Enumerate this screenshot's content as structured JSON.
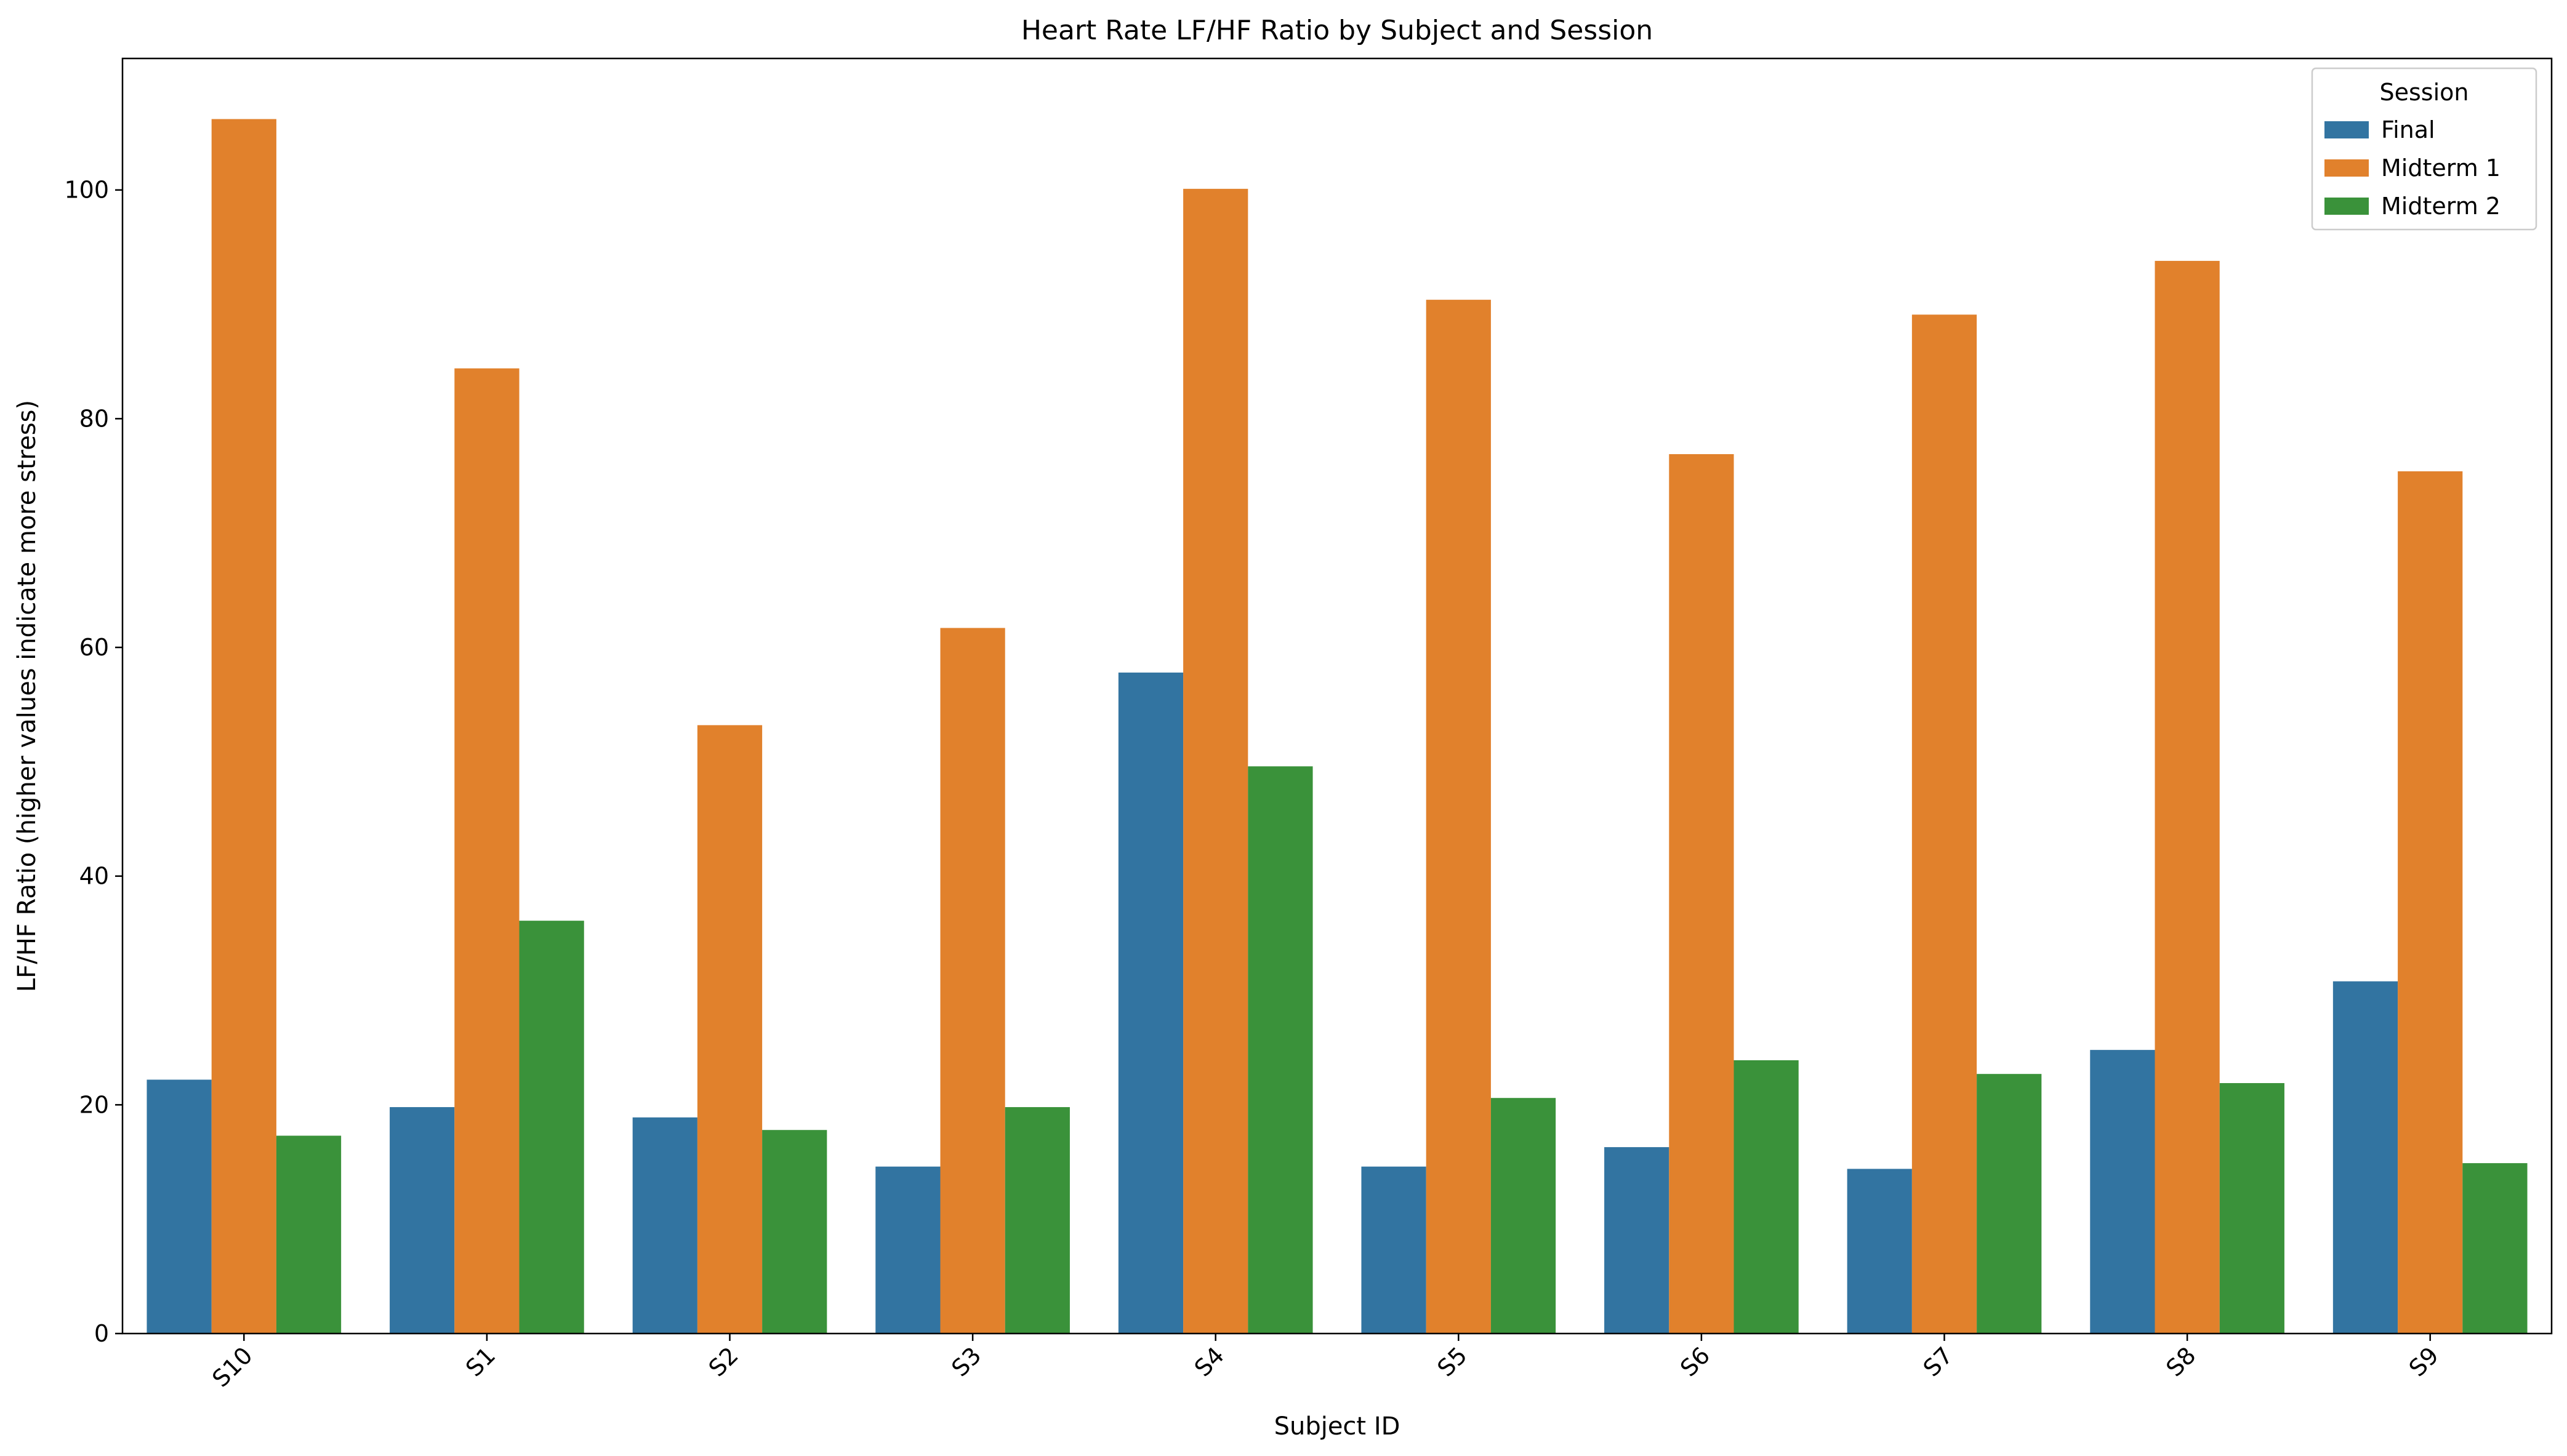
{
  "chart_data": {
    "type": "bar",
    "title": "Heart Rate LF/HF Ratio by Subject and Session",
    "xlabel": "Subject ID",
    "ylabel": "LF/HF Ratio (higher values indicate more stress)",
    "categories": [
      "S10",
      "S1",
      "S2",
      "S3",
      "S4",
      "S5",
      "S6",
      "S7",
      "S8",
      "S9"
    ],
    "ylim": [
      0,
      111.5
    ],
    "yticks": [
      0,
      20,
      40,
      60,
      80,
      100
    ],
    "grid": false,
    "legend": {
      "title": "Session",
      "placement": "top-right"
    },
    "series": [
      {
        "name": "Final",
        "color": "#3274a1",
        "values": [
          22.2,
          19.8,
          18.9,
          14.6,
          57.8,
          14.6,
          16.3,
          14.4,
          24.8,
          30.8
        ]
      },
      {
        "name": "Midterm 1",
        "color": "#e1812c",
        "values": [
          106.2,
          84.4,
          53.2,
          61.7,
          100.1,
          90.4,
          76.9,
          89.1,
          93.8,
          75.4
        ]
      },
      {
        "name": "Midterm 2",
        "color": "#3a923a",
        "values": [
          17.3,
          36.1,
          17.8,
          19.8,
          49.6,
          20.6,
          23.9,
          22.7,
          21.9,
          14.9
        ]
      }
    ]
  }
}
